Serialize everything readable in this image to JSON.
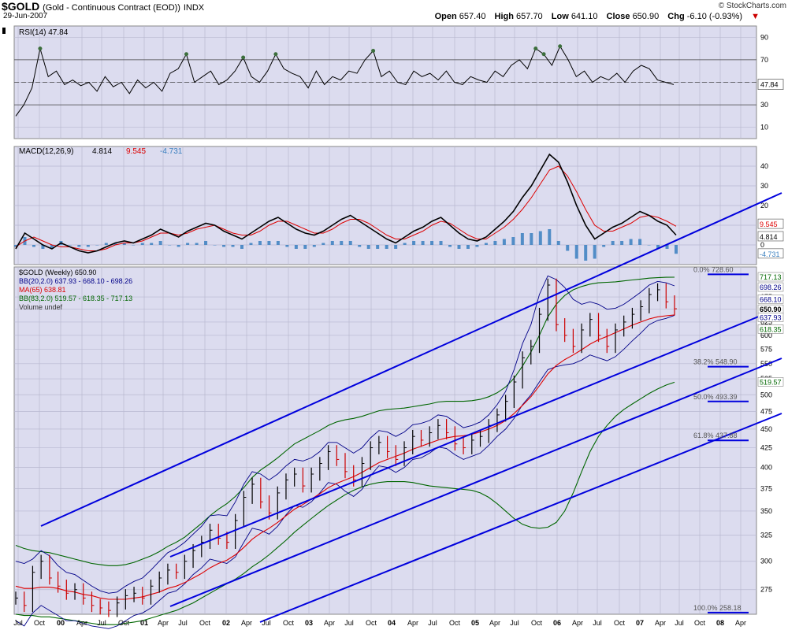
{
  "header": {
    "symbol": "$GOLD",
    "description": "(Gold - Continuous Contract (EOD))",
    "exchange": "INDX",
    "date": "29-Jun-2007",
    "open_label": "Open",
    "open": "657.40",
    "high_label": "High",
    "high": "657.70",
    "low_label": "Low",
    "low": "641.10",
    "close_label": "Close",
    "close": "650.90",
    "chg_label": "Chg",
    "chg": "-6.10 (-0.93%)",
    "credit": "© StockCharts.com"
  },
  "colors": {
    "panel_bg": "#dcdcef",
    "grid": "#b8b8d0",
    "channel": "#0000dd",
    "price_up": "#000000",
    "price_down": "#cc0000",
    "bb20": "#000088",
    "ma65": "#dd0000",
    "bb83": "#006600",
    "rsi_line": "#000000",
    "macd_line": "#000000",
    "macd_signal": "#dd0000",
    "macd_hist": "#3a7fbf",
    "overbought_fill": "#3c6e3c"
  },
  "chart_data": [
    {
      "type": "line",
      "panel": "RSI",
      "legend": "RSI(14) 47.84",
      "last_value": "47.84",
      "ylim": [
        0,
        100
      ],
      "y_ticks": [
        "90",
        "70",
        "50",
        "30",
        "10"
      ],
      "reference_lines": [
        70,
        50,
        30
      ],
      "values": [
        20,
        30,
        45,
        80,
        55,
        60,
        48,
        52,
        47,
        50,
        42,
        55,
        46,
        50,
        40,
        52,
        45,
        50,
        42,
        58,
        62,
        75,
        50,
        55,
        60,
        48,
        52,
        60,
        72,
        55,
        50,
        60,
        75,
        62,
        58,
        55,
        45,
        60,
        48,
        55,
        52,
        60,
        58,
        70,
        78,
        55,
        60,
        50,
        48,
        60,
        55,
        58,
        52,
        60,
        50,
        48,
        55,
        52,
        50,
        60,
        55,
        65,
        70,
        62,
        80,
        75,
        65,
        82,
        70,
        55,
        60,
        50,
        55,
        52,
        58,
        50,
        60,
        65,
        62,
        52,
        50,
        48
      ]
    },
    {
      "type": "line",
      "panel": "MACD",
      "legend_name": "MACD(12,26,9)",
      "legend_macd": "4.814",
      "legend_signal": "9.545",
      "legend_hist": "-4.731",
      "ylim": [
        -10,
        50
      ],
      "y_ticks": [
        "40",
        "30",
        "20",
        "10",
        "0"
      ],
      "right_labels": [
        "9.545",
        "4.814",
        "-4.731"
      ],
      "macd": [
        -2,
        6,
        3,
        0,
        -2,
        1,
        -1,
        -3,
        -4,
        -3,
        -1,
        1,
        2,
        1,
        3,
        5,
        8,
        6,
        4,
        7,
        9,
        11,
        10,
        7,
        5,
        3,
        6,
        9,
        12,
        14,
        11,
        8,
        6,
        5,
        7,
        10,
        13,
        15,
        12,
        9,
        6,
        3,
        1,
        4,
        7,
        9,
        12,
        14,
        10,
        6,
        3,
        2,
        4,
        8,
        12,
        17,
        24,
        30,
        38,
        46,
        42,
        32,
        20,
        10,
        3,
        6,
        9,
        11,
        14,
        17,
        15,
        12,
        10,
        5
      ],
      "signal": [
        -1,
        2,
        4,
        2,
        0,
        -1,
        -1,
        -2,
        -3,
        -3,
        -2,
        0,
        1,
        1,
        2,
        4,
        6,
        6,
        5,
        6,
        8,
        9,
        10,
        8,
        6,
        5,
        5,
        7,
        10,
        12,
        12,
        10,
        8,
        6,
        6,
        8,
        11,
        13,
        13,
        11,
        8,
        5,
        3,
        3,
        5,
        7,
        10,
        12,
        11,
        8,
        5,
        3,
        3,
        6,
        9,
        13,
        18,
        24,
        31,
        38,
        40,
        35,
        27,
        18,
        10,
        7,
        7,
        9,
        11,
        14,
        15,
        14,
        12,
        9.5
      ]
    },
    {
      "type": "line",
      "panel": "Price",
      "legend": [
        {
          "text": "$GOLD (Weekly) 650.90",
          "color": "#000000"
        },
        {
          "text": "BB(20,2.0) 637.93 - 668.10 - 698.26",
          "color": "#000088"
        },
        {
          "text": "MA(65) 638.81",
          "color": "#dd0000"
        },
        {
          "text": "BB(83,2.0) 519.57 - 618.35 - 717.13",
          "color": "#006600"
        },
        {
          "text": "Volume undef",
          "color": "#333333"
        }
      ],
      "y_scale": "log",
      "ylim": [
        255,
        740
      ],
      "y_ticks": [
        "675",
        "650",
        "625",
        "600",
        "575",
        "550",
        "525",
        "500",
        "475",
        "450",
        "425",
        "400",
        "375",
        "350",
        "325",
        "300",
        "275"
      ],
      "right_labels": [
        {
          "text": "717.13",
          "color": "#006600"
        },
        {
          "text": "698.26",
          "color": "#000088"
        },
        {
          "text": "668.10",
          "color": "#000088"
        },
        {
          "text": "650.90",
          "color": "#000000"
        },
        {
          "text": "637.93",
          "color": "#000088"
        },
        {
          "text": "618.35",
          "color": "#006600"
        },
        {
          "text": "519.57",
          "color": "#006600"
        }
      ],
      "fib_levels": [
        {
          "label": "0.0% 728.60",
          "value": 728.6
        },
        {
          "label": "38.2% 548.90",
          "value": 548.9
        },
        {
          "label": "50.0% 493.39",
          "value": 493.39
        },
        {
          "label": "61.8% 437.88",
          "value": 437.88
        },
        {
          "label": "100.0% 258.18",
          "value": 258.18
        }
      ],
      "close": [
        268,
        262,
        290,
        300,
        285,
        278,
        272,
        275,
        268,
        262,
        260,
        258,
        264,
        270,
        272,
        268,
        278,
        285,
        292,
        290,
        300,
        310,
        318,
        330,
        322,
        318,
        340,
        365,
        380,
        360,
        348,
        370,
        385,
        392,
        378,
        392,
        405,
        420,
        410,
        395,
        385,
        405,
        425,
        432,
        420,
        410,
        425,
        440,
        435,
        445,
        455,
        445,
        430,
        425,
        435,
        440,
        455,
        470,
        490,
        520,
        560,
        580,
        640,
        700,
        620,
        600,
        580,
        610,
        630,
        600,
        580,
        610,
        625,
        640,
        655,
        680,
        690,
        665,
        650.9
      ],
      "bb20_upper": [
        300,
        298,
        302,
        310,
        305,
        296,
        290,
        288,
        283,
        278,
        274,
        272,
        273,
        278,
        282,
        285,
        292,
        300,
        308,
        312,
        318,
        326,
        334,
        345,
        346,
        345,
        360,
        380,
        395,
        392,
        385,
        392,
        402,
        410,
        408,
        412,
        420,
        432,
        432,
        425,
        418,
        425,
        438,
        448,
        446,
        440,
        446,
        456,
        458,
        462,
        470,
        468,
        460,
        452,
        455,
        460,
        470,
        485,
        505,
        540,
        585,
        620,
        680,
        720,
        712,
        695,
        670,
        660,
        665,
        660,
        650,
        652,
        660,
        672,
        685,
        700,
        708,
        705,
        698.26
      ],
      "bb20_lower": [
        250,
        246,
        256,
        262,
        258,
        254,
        250,
        250,
        248,
        246,
        245,
        244,
        246,
        250,
        254,
        256,
        260,
        266,
        272,
        274,
        280,
        288,
        294,
        302,
        300,
        298,
        304,
        318,
        332,
        330,
        326,
        334,
        346,
        356,
        354,
        360,
        370,
        382,
        380,
        372,
        366,
        374,
        390,
        402,
        400,
        394,
        400,
        410,
        412,
        418,
        426,
        424,
        416,
        410,
        414,
        418,
        428,
        440,
        450,
        465,
        485,
        500,
        520,
        540,
        545,
        548,
        550,
        556,
        565,
        560,
        555,
        562,
        575,
        590,
        604,
        620,
        628,
        632,
        637.93
      ],
      "ma65": [
        278,
        276,
        276,
        277,
        277,
        276,
        274,
        273,
        271,
        270,
        268,
        267,
        267,
        267,
        268,
        269,
        271,
        273,
        276,
        278,
        281,
        285,
        289,
        294,
        298,
        301,
        306,
        313,
        321,
        327,
        332,
        338,
        345,
        352,
        357,
        363,
        369,
        376,
        381,
        385,
        389,
        394,
        400,
        406,
        410,
        414,
        418,
        423,
        427,
        431,
        435,
        438,
        440,
        441,
        443,
        446,
        450,
        455,
        462,
        472,
        484,
        497,
        514,
        533,
        547,
        557,
        565,
        574,
        584,
        592,
        598,
        605,
        612,
        619,
        625,
        631,
        635,
        637,
        638.81
      ],
      "bb83_upper": [
        315,
        312,
        310,
        309,
        308,
        306,
        304,
        302,
        300,
        298,
        297,
        296,
        296,
        297,
        299,
        302,
        305,
        309,
        314,
        318,
        323,
        330,
        337,
        345,
        352,
        358,
        366,
        376,
        388,
        397,
        404,
        412,
        421,
        430,
        436,
        442,
        448,
        455,
        460,
        463,
        465,
        468,
        472,
        476,
        478,
        479,
        480,
        482,
        484,
        486,
        489,
        490,
        490,
        490,
        491,
        493,
        497,
        503,
        512,
        526,
        546,
        570,
        600,
        635,
        660,
        678,
        690,
        697,
        702,
        705,
        706,
        707,
        709,
        711,
        713,
        715,
        716,
        717,
        717.13
      ],
      "bb83_lower": [
        255,
        254,
        254,
        253,
        253,
        252,
        251,
        250,
        249,
        248,
        247,
        247,
        247,
        248,
        249,
        250,
        252,
        254,
        256,
        258,
        261,
        264,
        268,
        272,
        276,
        280,
        284,
        289,
        295,
        300,
        306,
        313,
        320,
        328,
        335,
        342,
        349,
        356,
        362,
        368,
        373,
        377,
        380,
        382,
        383,
        383,
        383,
        382,
        380,
        378,
        377,
        376,
        375,
        374,
        373,
        370,
        365,
        358,
        350,
        342,
        336,
        333,
        332,
        333,
        338,
        350,
        370,
        395,
        420,
        440,
        455,
        468,
        478,
        486,
        494,
        502,
        509,
        515,
        519.57
      ]
    }
  ],
  "x_axis": {
    "ticks": [
      {
        "label": "Jul",
        "x": 23
      },
      {
        "label": "Oct",
        "x": 50
      },
      {
        "label": "00",
        "x": 77,
        "bold": true
      },
      {
        "label": "Apr",
        "x": 104
      },
      {
        "label": "Jul",
        "x": 129
      },
      {
        "label": "Oct",
        "x": 157
      },
      {
        "label": "01",
        "x": 183,
        "bold": true
      },
      {
        "label": "Apr",
        "x": 207
      },
      {
        "label": "Jul",
        "x": 232
      },
      {
        "label": "Oct",
        "x": 260
      },
      {
        "label": "02",
        "x": 287,
        "bold": true
      },
      {
        "label": "Apr",
        "x": 313
      },
      {
        "label": "Jul",
        "x": 338
      },
      {
        "label": "Oct",
        "x": 366
      },
      {
        "label": "03",
        "x": 392,
        "bold": true
      },
      {
        "label": "Apr",
        "x": 418
      },
      {
        "label": "Jul",
        "x": 443
      },
      {
        "label": "Oct",
        "x": 471
      },
      {
        "label": "04",
        "x": 497,
        "bold": true
      },
      {
        "label": "Apr",
        "x": 524
      },
      {
        "label": "Jul",
        "x": 549
      },
      {
        "label": "Oct",
        "x": 577
      },
      {
        "label": "05",
        "x": 603,
        "bold": true
      },
      {
        "label": "Apr",
        "x": 628
      },
      {
        "label": "Jul",
        "x": 653
      },
      {
        "label": "Oct",
        "x": 681
      },
      {
        "label": "06",
        "x": 707,
        "bold": true
      },
      {
        "label": "Apr",
        "x": 733
      },
      {
        "label": "Jul",
        "x": 758
      },
      {
        "label": "Oct",
        "x": 786
      },
      {
        "label": "07",
        "x": 812,
        "bold": true
      },
      {
        "label": "Apr",
        "x": 838
      },
      {
        "label": "Jul",
        "x": 862
      },
      {
        "label": "Oct",
        "x": 888
      },
      {
        "label": "08",
        "x": 914,
        "bold": true
      },
      {
        "label": "Apr",
        "x": 940
      }
    ]
  }
}
